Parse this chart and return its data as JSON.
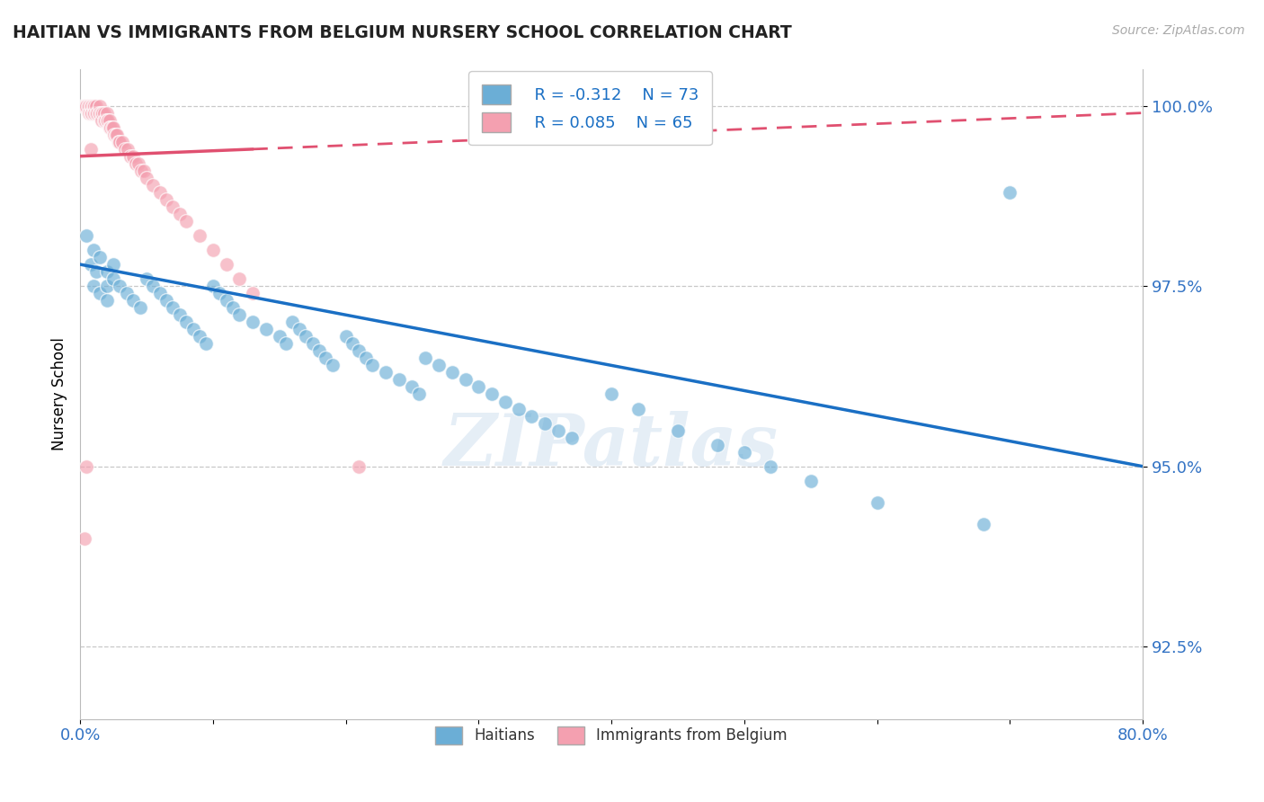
{
  "title": "HAITIAN VS IMMIGRANTS FROM BELGIUM NURSERY SCHOOL CORRELATION CHART",
  "source": "Source: ZipAtlas.com",
  "ylabel": "Nursery School",
  "xlabel": "",
  "xlim": [
    0.0,
    0.8
  ],
  "ylim": [
    0.915,
    1.005
  ],
  "yticks": [
    0.925,
    0.95,
    0.975,
    1.0
  ],
  "ytick_labels": [
    "92.5%",
    "95.0%",
    "97.5%",
    "100.0%"
  ],
  "xticks": [
    0.0,
    0.1,
    0.2,
    0.3,
    0.4,
    0.5,
    0.6,
    0.7,
    0.8
  ],
  "xtick_labels": [
    "0.0%",
    "",
    "",
    "",
    "",
    "",
    "",
    "",
    "80.0%"
  ],
  "blue_color": "#6baed6",
  "pink_color": "#f4a0b0",
  "blue_line_color": "#1a6fc4",
  "pink_line_color": "#e05070",
  "legend_R_blue": "R = -0.312",
  "legend_N_blue": "N = 73",
  "legend_R_pink": "R = 0.085",
  "legend_N_pink": "N = 65",
  "legend_label_blue": "Haitians",
  "legend_label_pink": "Immigrants from Belgium",
  "watermark": "ZIPatlas",
  "blue_line_x0": 0.0,
  "blue_line_y0": 0.978,
  "blue_line_x1": 0.8,
  "blue_line_y1": 0.95,
  "pink_line_x0": 0.0,
  "pink_line_y0": 0.993,
  "pink_line_x1": 0.8,
  "pink_line_y1": 0.999,
  "blue_scatter_x": [
    0.005,
    0.008,
    0.01,
    0.01,
    0.012,
    0.015,
    0.015,
    0.02,
    0.02,
    0.02,
    0.025,
    0.025,
    0.03,
    0.035,
    0.04,
    0.045,
    0.05,
    0.055,
    0.06,
    0.065,
    0.07,
    0.075,
    0.08,
    0.085,
    0.09,
    0.095,
    0.1,
    0.105,
    0.11,
    0.115,
    0.12,
    0.13,
    0.14,
    0.15,
    0.155,
    0.16,
    0.165,
    0.17,
    0.175,
    0.18,
    0.185,
    0.19,
    0.2,
    0.205,
    0.21,
    0.215,
    0.22,
    0.23,
    0.24,
    0.25,
    0.255,
    0.26,
    0.27,
    0.28,
    0.29,
    0.3,
    0.31,
    0.32,
    0.33,
    0.34,
    0.35,
    0.36,
    0.37,
    0.4,
    0.42,
    0.45,
    0.48,
    0.5,
    0.52,
    0.55,
    0.6,
    0.68,
    0.7
  ],
  "blue_scatter_y": [
    0.982,
    0.978,
    0.98,
    0.975,
    0.977,
    0.979,
    0.974,
    0.977,
    0.975,
    0.973,
    0.978,
    0.976,
    0.975,
    0.974,
    0.973,
    0.972,
    0.976,
    0.975,
    0.974,
    0.973,
    0.972,
    0.971,
    0.97,
    0.969,
    0.968,
    0.967,
    0.975,
    0.974,
    0.973,
    0.972,
    0.971,
    0.97,
    0.969,
    0.968,
    0.967,
    0.97,
    0.969,
    0.968,
    0.967,
    0.966,
    0.965,
    0.964,
    0.968,
    0.967,
    0.966,
    0.965,
    0.964,
    0.963,
    0.962,
    0.961,
    0.96,
    0.965,
    0.964,
    0.963,
    0.962,
    0.961,
    0.96,
    0.959,
    0.958,
    0.957,
    0.956,
    0.955,
    0.954,
    0.96,
    0.958,
    0.955,
    0.953,
    0.952,
    0.95,
    0.948,
    0.945,
    0.942,
    0.988
  ],
  "pink_scatter_x": [
    0.002,
    0.003,
    0.004,
    0.005,
    0.006,
    0.007,
    0.007,
    0.008,
    0.008,
    0.009,
    0.009,
    0.01,
    0.01,
    0.011,
    0.011,
    0.012,
    0.012,
    0.013,
    0.014,
    0.015,
    0.015,
    0.016,
    0.016,
    0.017,
    0.018,
    0.018,
    0.019,
    0.02,
    0.02,
    0.021,
    0.022,
    0.022,
    0.023,
    0.024,
    0.025,
    0.026,
    0.027,
    0.028,
    0.029,
    0.03,
    0.032,
    0.034,
    0.036,
    0.038,
    0.04,
    0.042,
    0.044,
    0.046,
    0.048,
    0.05,
    0.055,
    0.06,
    0.065,
    0.07,
    0.075,
    0.08,
    0.09,
    0.1,
    0.11,
    0.12,
    0.13,
    0.21,
    0.008,
    0.005,
    0.003
  ],
  "pink_scatter_y": [
    1.0,
    1.0,
    1.0,
    1.0,
    1.0,
    1.0,
    0.999,
    1.0,
    0.999,
    1.0,
    0.999,
    1.0,
    0.999,
    1.0,
    0.999,
    1.0,
    0.999,
    0.999,
    0.999,
    1.0,
    0.999,
    0.999,
    0.998,
    0.999,
    0.999,
    0.998,
    0.998,
    0.999,
    0.998,
    0.998,
    0.998,
    0.997,
    0.997,
    0.997,
    0.997,
    0.996,
    0.996,
    0.996,
    0.995,
    0.995,
    0.995,
    0.994,
    0.994,
    0.993,
    0.993,
    0.992,
    0.992,
    0.991,
    0.991,
    0.99,
    0.989,
    0.988,
    0.987,
    0.986,
    0.985,
    0.984,
    0.982,
    0.98,
    0.978,
    0.976,
    0.974,
    0.95,
    0.994,
    0.95,
    0.94
  ]
}
